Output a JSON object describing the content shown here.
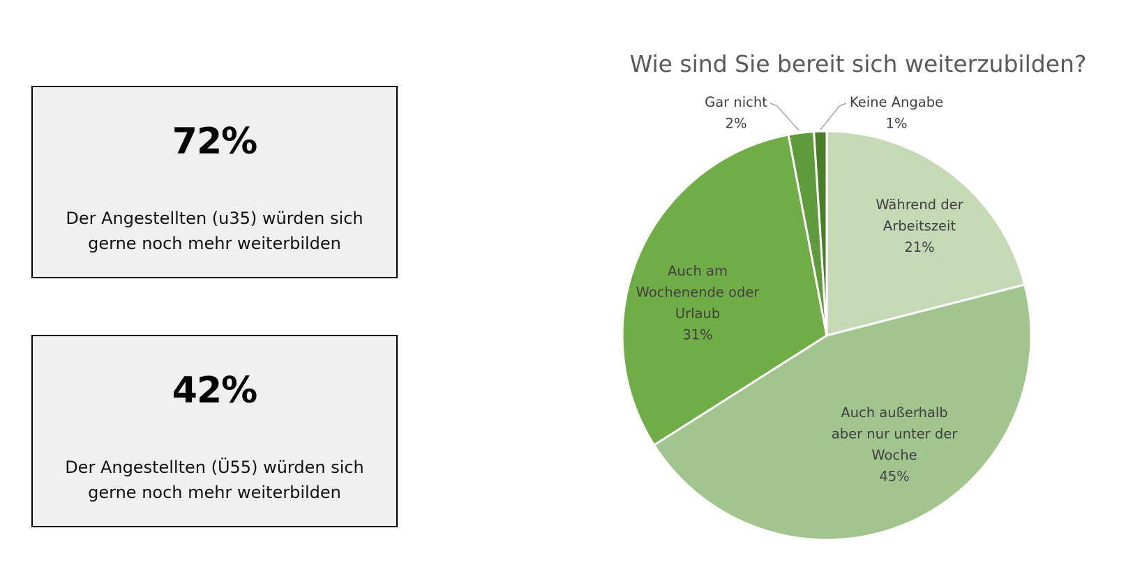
{
  "stats": [
    {
      "value": "72%",
      "line1": "Der Angestellten (u35) würden sich",
      "line2": "gerne noch mehr weiterbilden"
    },
    {
      "value": "42%",
      "line1": "Der Angestellten (Ü55) würden sich",
      "line2": "gerne noch mehr weiterbilden"
    }
  ],
  "chart_data": {
    "type": "pie",
    "title": "Wie sind Sie bereit sich weiterzubilden?",
    "start_angle_deg": 0,
    "direction": "clockwise",
    "slices": [
      {
        "label_lines": [
          "Während der",
          "Arbeitszeit"
        ],
        "value": 21,
        "value_label": "21%",
        "color": "#c5d9b6"
      },
      {
        "label_lines": [
          "Auch außerhalb",
          "aber nur unter der",
          "Woche"
        ],
        "value": 45,
        "value_label": "45%",
        "color": "#a2c48f"
      },
      {
        "label_lines": [
          "Auch am",
          "Wochenende oder",
          "Urlaub"
        ],
        "value": 31,
        "value_label": "31%",
        "color": "#70ad47"
      },
      {
        "label_lines": [
          "Gar nicht"
        ],
        "value": 2,
        "value_label": "2%",
        "color": "#5f9a3c",
        "external_label": true
      },
      {
        "label_lines": [
          "Keine Angabe"
        ],
        "value": 1,
        "value_label": "1%",
        "color": "#477f29",
        "external_label": true
      }
    ],
    "slice_border_color": "#ffffff",
    "label_text_color": "#404040",
    "leader_line_color": "#a6a6a6"
  }
}
